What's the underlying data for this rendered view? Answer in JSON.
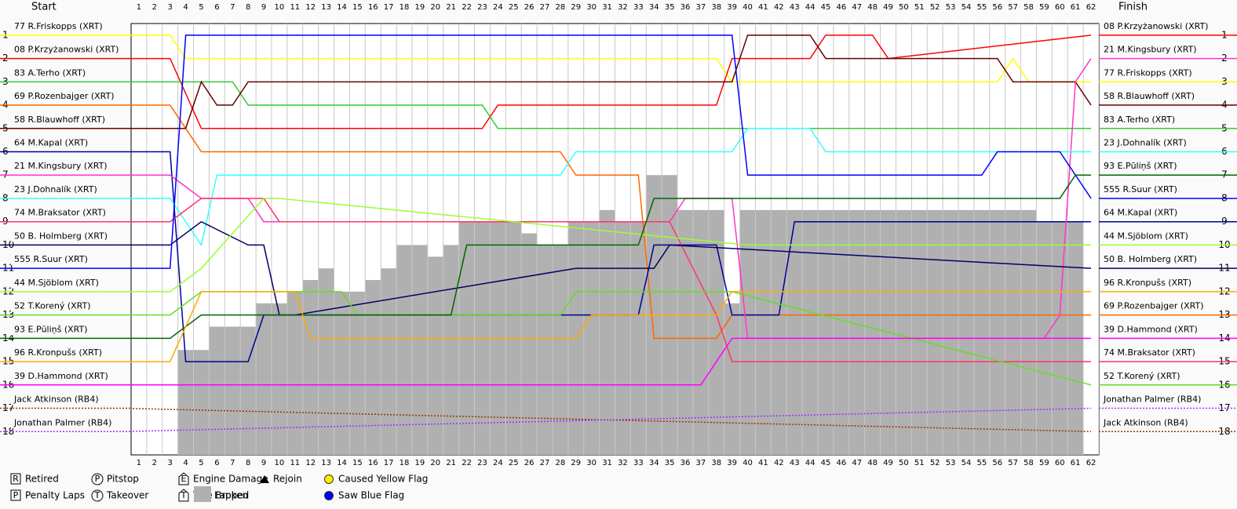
{
  "chart_data": {
    "type": "lap-chart",
    "start_title": "Start",
    "finish_title": "Finish",
    "xlim": [
      0.5,
      62.5
    ],
    "xticks": [
      1,
      2,
      3,
      4,
      5,
      6,
      7,
      8,
      9,
      10,
      11,
      12,
      13,
      14,
      15,
      16,
      17,
      18,
      19,
      20,
      21,
      22,
      23,
      24,
      25,
      26,
      27,
      28,
      29,
      30,
      31,
      32,
      33,
      34,
      35,
      36,
      37,
      38,
      39,
      40,
      41,
      42,
      43,
      44,
      45,
      46,
      47,
      48,
      49,
      50,
      51,
      52,
      53,
      54,
      55,
      56,
      57,
      58,
      59,
      60,
      61,
      62
    ],
    "ylim": [
      0.5,
      19
    ],
    "yticks": [
      1,
      2,
      3,
      4,
      5,
      6,
      7,
      8,
      9,
      10,
      11,
      12,
      13,
      14,
      15,
      16,
      17,
      18
    ],
    "lapped": [
      null,
      null,
      null,
      14.5,
      14.5,
      13.5,
      13.5,
      13.5,
      12.5,
      12.5,
      12,
      11.5,
      11,
      12,
      12,
      11.5,
      11,
      10,
      10,
      10.5,
      10,
      9,
      9,
      9,
      9,
      9.5,
      10,
      10,
      9,
      9,
      8.5,
      9,
      9,
      7,
      7,
      8.5,
      8.5,
      8.5,
      12.5,
      8.5,
      8.5,
      8.5,
      8.5,
      8.5,
      8.5,
      8.5,
      8.5,
      8.5,
      8.5,
      8.5,
      8.5,
      8.5,
      8.5,
      8.5,
      8.5,
      8.5,
      8.5,
      8.5,
      9,
      9,
      9,
      null
    ],
    "series": [
      {
        "name": "77 R.Friskopps (XRT)",
        "color": "#ffff00",
        "x": [
          0,
          3,
          4,
          38,
          39,
          56,
          57,
          58,
          62
        ],
        "values": [
          1,
          1,
          2,
          2,
          3,
          3,
          2,
          3,
          3
        ]
      },
      {
        "name": "08 P.Krzyżanowski (XRT)",
        "color": "#ff0000",
        "x": [
          0,
          3,
          5,
          23,
          24,
          38,
          39,
          44,
          45,
          48,
          49,
          62
        ],
        "values": [
          2,
          2,
          5,
          5,
          4,
          4,
          2,
          2,
          1,
          1,
          2,
          1
        ]
      },
      {
        "name": "83 A.Terho (XRT)",
        "color": "#33cc33",
        "x": [
          0,
          4,
          6,
          7,
          8,
          23,
          24,
          62
        ],
        "values": [
          3,
          3,
          3,
          3,
          4,
          4,
          5,
          5
        ]
      },
      {
        "name": "69 P.Rozenbajger (XRT)",
        "color": "#ff6600",
        "x": [
          0,
          3,
          5,
          28,
          29,
          33,
          34,
          38,
          39,
          62
        ],
        "values": [
          4,
          4,
          6,
          6,
          7,
          7,
          14,
          14,
          13,
          13
        ]
      },
      {
        "name": "58 R.Blauwhoff (XRT)",
        "color": "#660000",
        "x": [
          0,
          4,
          5,
          6,
          7,
          8,
          39,
          40,
          44,
          45,
          56,
          57,
          61,
          62
        ],
        "values": [
          5,
          5,
          3,
          4,
          4,
          3,
          3,
          1,
          1,
          2,
          2,
          3,
          3,
          4
        ]
      },
      {
        "name": "64 M.Kapal (XRT)",
        "color": "#000099",
        "x": [
          0,
          3,
          4,
          8,
          9,
          33,
          34,
          38,
          39,
          42,
          43,
          62
        ],
        "values": [
          6,
          6,
          15,
          15,
          13,
          13,
          10,
          10,
          13,
          13,
          9,
          9
        ]
      },
      {
        "name": "21 M.Kingsbury (XRT)",
        "color": "#ff33cc",
        "x": [
          0,
          3,
          5,
          8,
          9,
          35,
          36,
          39,
          40,
          59,
          60,
          61,
          62
        ],
        "values": [
          7,
          7,
          8,
          8,
          9,
          9,
          8,
          8,
          14,
          14,
          13,
          3,
          2
        ]
      },
      {
        "name": "23 J.Dohnalík (XRT)",
        "color": "#33ffff",
        "x": [
          0,
          3,
          5,
          6,
          28,
          29,
          39,
          40,
          44,
          45,
          62
        ],
        "values": [
          8,
          8,
          10,
          7,
          7,
          6,
          6,
          5,
          5,
          6,
          6
        ]
      },
      {
        "name": "74 M.Braksator (XRT)",
        "color": "#ff3366",
        "x": [
          0,
          3,
          5,
          9,
          10,
          34,
          35,
          38,
          39,
          62
        ],
        "values": [
          9,
          9,
          8,
          8,
          9,
          9,
          9,
          13,
          15,
          15
        ]
      },
      {
        "name": "50 B. Holmberg (XRT)",
        "color": "#000066",
        "x": [
          0,
          3,
          5,
          8,
          9,
          10,
          11,
          29,
          30,
          34,
          35,
          62
        ],
        "values": [
          10,
          10,
          9,
          10,
          10,
          13,
          13,
          11,
          11,
          11,
          10,
          11
        ]
      },
      {
        "name": "555 R.Suur (XRT)",
        "color": "#0000ff",
        "x": [
          0,
          3,
          4,
          39,
          40,
          55,
          56,
          60,
          61,
          62
        ],
        "values": [
          11,
          11,
          1,
          1,
          7,
          7,
          6,
          6,
          7,
          8
        ]
      },
      {
        "name": "44 M.Sjöblom (XRT)",
        "color": "#99ff33",
        "x": [
          0,
          3,
          5,
          9,
          10,
          40,
          41,
          62
        ],
        "values": [
          12,
          12,
          11,
          8,
          8,
          10,
          10,
          10
        ]
      },
      {
        "name": "52 T.Korený (XRT)",
        "color": "#66dd22",
        "x": [
          0,
          3,
          5,
          14,
          15,
          28,
          29,
          38,
          39,
          62
        ],
        "values": [
          13,
          13,
          12,
          12,
          13,
          13,
          12,
          12,
          12,
          16
        ]
      },
      {
        "name": "93 E.Pūliņš (XRT)",
        "color": "#006600",
        "x": [
          0,
          3,
          5,
          21,
          22,
          33,
          34,
          60,
          61,
          62
        ],
        "values": [
          14,
          14,
          13,
          13,
          10,
          10,
          8,
          8,
          7,
          7
        ]
      },
      {
        "name": "96 R.Kronpušs (XRT)",
        "color": "#ffaa00",
        "x": [
          0,
          3,
          5,
          11,
          12,
          29,
          30,
          38,
          39,
          62
        ],
        "values": [
          15,
          15,
          12,
          12,
          14,
          14,
          13,
          13,
          12,
          12
        ]
      },
      {
        "name": "39 D.Hammond (XRT)",
        "color": "#ff00ff",
        "x": [
          0,
          3,
          4,
          37,
          38,
          39,
          62
        ],
        "values": [
          16,
          16,
          16,
          16,
          15,
          14,
          14
        ]
      },
      {
        "name": "Jack Atkinson (RB4)",
        "color": "#993300",
        "dotted": true,
        "x": [
          0,
          62
        ],
        "values": [
          17,
          18
        ]
      },
      {
        "name": "Jonathan Palmer (RB4)",
        "color": "#9933ff",
        "dotted": true,
        "x": [
          0,
          62
        ],
        "values": [
          18,
          17
        ]
      }
    ],
    "legend": [
      {
        "symbol": "R",
        "label": "Retired"
      },
      {
        "symbol": "P",
        "label": "Penalty Laps"
      },
      {
        "symbol": "P",
        "label": "Pitstop"
      },
      {
        "symbol": "T",
        "label": "Takeover"
      },
      {
        "symbol": "E",
        "label": "Engine Damage"
      },
      {
        "symbol": "T",
        "label": "Tyre Broken"
      },
      {
        "label": "Rejoin"
      },
      {
        "label": "Lapped"
      },
      {
        "label": "Caused Yellow Flag"
      },
      {
        "label": "Saw Blue Flag"
      }
    ]
  }
}
